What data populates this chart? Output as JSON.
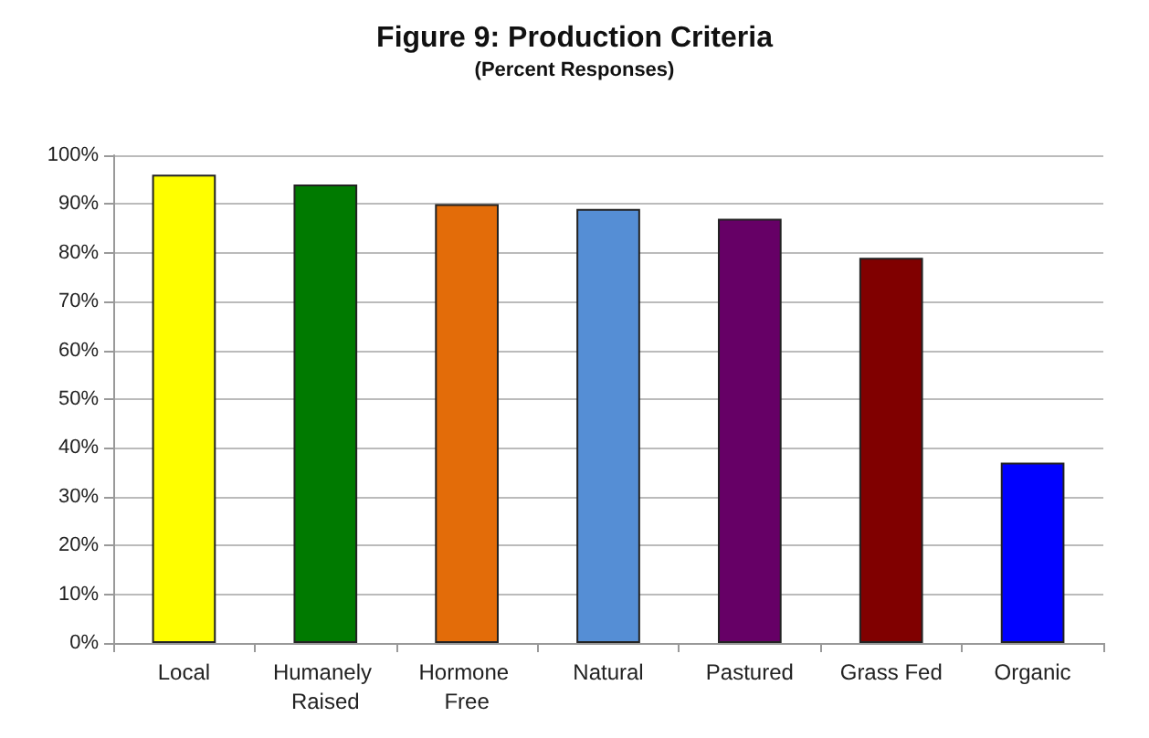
{
  "chart_data": {
    "type": "bar",
    "title": "Figure 9: Production Criteria",
    "subtitle": "(Percent Responses)",
    "categories": [
      "Local",
      "Humanely Raised",
      "Hormone Free",
      "Natural",
      "Pastured",
      "Grass Fed",
      "Organic"
    ],
    "values": [
      96,
      94,
      90,
      89,
      87,
      79,
      37
    ],
    "colors": [
      "#ffff00",
      "#007a00",
      "#e36c09",
      "#558ed5",
      "#660066",
      "#800000",
      "#0000ff"
    ],
    "ylim": [
      0,
      100
    ],
    "yticks": [
      {
        "value": 0,
        "label": "0%"
      },
      {
        "value": 10,
        "label": "10%"
      },
      {
        "value": 20,
        "label": "20%"
      },
      {
        "value": 30,
        "label": "30%"
      },
      {
        "value": 40,
        "label": "40%"
      },
      {
        "value": 50,
        "label": "50%"
      },
      {
        "value": 60,
        "label": "60%"
      },
      {
        "value": 70,
        "label": "70%"
      },
      {
        "value": 80,
        "label": "80%"
      },
      {
        "value": 90,
        "label": "90%"
      },
      {
        "value": 100,
        "label": "100%"
      }
    ],
    "grid": "y"
  }
}
